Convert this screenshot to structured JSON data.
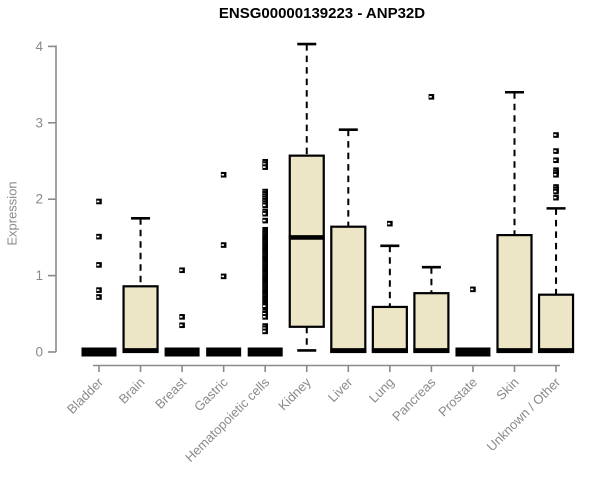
{
  "colors": {
    "box_fill": "#ece5c6",
    "box_border": "#000000",
    "median": "#000000",
    "whisker": "#000000",
    "outlier": "#000000",
    "axis": "#8a8a8a",
    "tick_label": "#8a8a8a",
    "title": "#000000",
    "background": "#ffffff"
  },
  "chart_data": {
    "type": "box",
    "title": "ENSG00000139223 - ANP32D",
    "xlabel": "",
    "ylabel": "Expression",
    "ylim": [
      0,
      4
    ],
    "yticks": [
      0,
      1,
      2,
      3,
      4
    ],
    "grid": "off",
    "legend": "none",
    "categories": [
      "Bladder",
      "Brain",
      "Breast",
      "Gastric",
      "Hematopoietic cells",
      "Kidney",
      "Liver",
      "Lung",
      "Pancreas",
      "Prostate",
      "Skin",
      "Unknown / Other"
    ],
    "boxes": [
      {
        "category": "Bladder",
        "collapsed": true,
        "low": 0,
        "q1": 0,
        "median": 0.02,
        "q3": 0.03,
        "high": 0.03,
        "outliers": [
          1.97,
          1.51,
          1.14,
          0.81,
          0.72
        ]
      },
      {
        "category": "Brain",
        "collapsed": false,
        "low": 0,
        "q1": 0,
        "median": 0.02,
        "q3": 0.86,
        "high": 1.75,
        "outliers": []
      },
      {
        "category": "Breast",
        "collapsed": true,
        "low": 0,
        "q1": 0,
        "median": 0.02,
        "q3": 0.03,
        "high": 0.03,
        "outliers": [
          1.07,
          0.46,
          0.35
        ]
      },
      {
        "category": "Gastric",
        "collapsed": true,
        "low": 0,
        "q1": 0,
        "median": 0.02,
        "q3": 0.03,
        "high": 0.03,
        "outliers": [
          2.32,
          1.4,
          0.99
        ]
      },
      {
        "category": "Hematopoietic cells",
        "collapsed": true,
        "low": 0,
        "q1": 0,
        "median": 0.02,
        "q3": 0.03,
        "high": 0.03,
        "outliers": [
          2.49,
          2.46,
          2.42,
          2.1,
          2.07,
          2.04,
          2.01,
          1.98,
          1.95,
          1.92,
          1.84,
          1.81,
          1.72,
          1.6,
          1.575,
          1.55,
          1.525,
          1.5,
          1.475,
          1.45,
          1.425,
          1.4,
          1.375,
          1.35,
          1.325,
          1.3,
          1.275,
          1.25,
          1.225,
          1.2,
          1.175,
          1.15,
          1.125,
          1.1,
          1.075,
          1.05,
          1.025,
          1.0,
          0.975,
          0.95,
          0.925,
          0.9,
          0.875,
          0.85,
          0.825,
          0.8,
          0.775,
          0.75,
          0.725,
          0.7,
          0.675,
          0.65,
          0.625,
          0.6,
          0.53,
          0.5,
          0.46,
          0.34,
          0.31,
          0.27
        ]
      },
      {
        "category": "Kidney",
        "collapsed": false,
        "low": 0.02,
        "q1": 0.33,
        "median": 1.5,
        "q3": 2.57,
        "high": 4.03,
        "outliers": []
      },
      {
        "category": "Liver",
        "collapsed": false,
        "low": 0,
        "q1": 0,
        "median": 0.02,
        "q3": 1.64,
        "high": 2.91,
        "outliers": []
      },
      {
        "category": "Lung",
        "collapsed": false,
        "low": 0,
        "q1": 0,
        "median": 0.02,
        "q3": 0.59,
        "high": 1.39,
        "outliers": [
          1.68
        ]
      },
      {
        "category": "Pancreas",
        "collapsed": false,
        "low": 0,
        "q1": 0,
        "median": 0.02,
        "q3": 0.77,
        "high": 1.11,
        "outliers": [
          3.34
        ]
      },
      {
        "category": "Prostate",
        "collapsed": true,
        "low": 0,
        "q1": 0,
        "median": 0.02,
        "q3": 0.03,
        "high": 0.03,
        "outliers": [
          0.82
        ]
      },
      {
        "category": "Skin",
        "collapsed": false,
        "low": 0,
        "q1": 0,
        "median": 0.02,
        "q3": 1.53,
        "high": 3.4,
        "outliers": []
      },
      {
        "category": "Unknown / Other",
        "collapsed": false,
        "low": 0,
        "q1": 0,
        "median": 0.02,
        "q3": 0.75,
        "high": 1.88,
        "outliers": [
          2.84,
          2.63,
          2.51,
          2.38,
          2.35,
          2.32,
          2.16,
          2.13,
          2.1,
          2.02
        ]
      }
    ]
  }
}
